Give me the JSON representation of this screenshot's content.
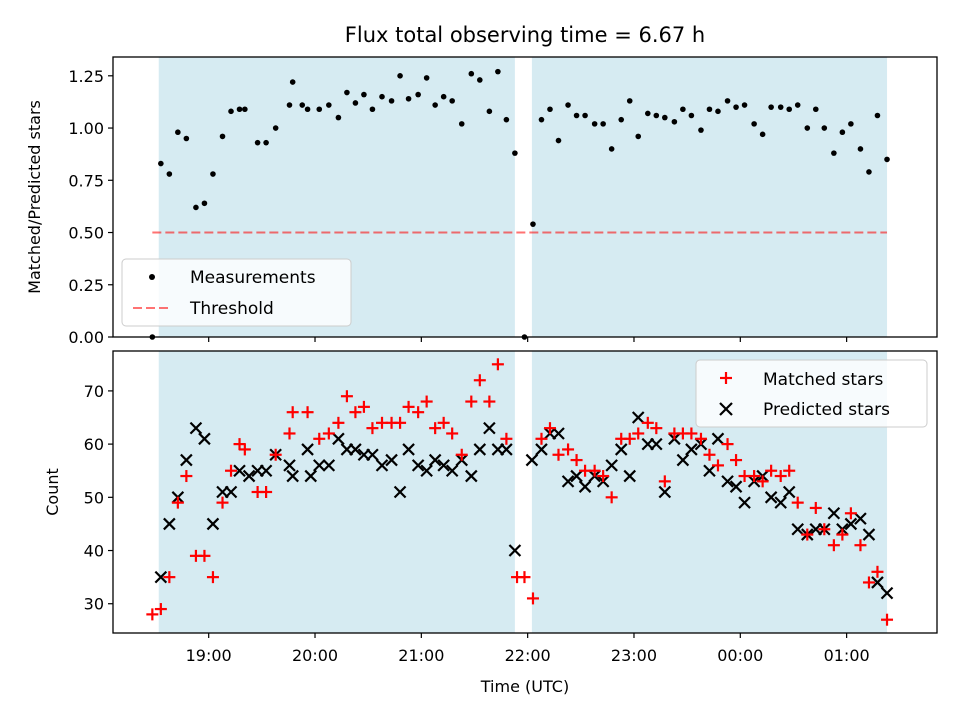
{
  "chart_data": {
    "title": "Flux total observing time = 6.67 h",
    "xlabel": "Time (UTC)",
    "x_unit": "hours since 18:00 UTC",
    "xlim": [
      18.1,
      25.85
    ],
    "x_ticks": [
      {
        "x": 19,
        "label": "19:00"
      },
      {
        "x": 20,
        "label": "20:00"
      },
      {
        "x": 21,
        "label": "21:00"
      },
      {
        "x": 22,
        "label": "22:00"
      },
      {
        "x": 23,
        "label": "23:00"
      },
      {
        "x": 24,
        "label": "00:00"
      },
      {
        "x": 25,
        "label": "01:00"
      }
    ],
    "colors": {
      "shade": "#add8e6",
      "measurement": "#000000",
      "threshold": "#ff0000",
      "matched": "#ff0000",
      "predicted": "#000000"
    },
    "shaded_spans": [
      [
        18.53,
        21.88
      ],
      [
        22.04,
        25.38
      ]
    ],
    "top": {
      "type": "scatter",
      "ylabel": "Matched/Predicted stars",
      "ylim": [
        0,
        1.34
      ],
      "y_ticks": [
        {
          "y": 0,
          "label": "0.00"
        },
        {
          "y": 0.25,
          "label": "0.25"
        },
        {
          "y": 0.5,
          "label": "0.50"
        },
        {
          "y": 0.75,
          "label": "0.75"
        },
        {
          "y": 1.0,
          "label": "1.00"
        },
        {
          "y": 1.25,
          "label": "1.25"
        }
      ],
      "threshold": {
        "y": 0.5,
        "x_range": [
          18.47,
          25.38
        ]
      },
      "legend": {
        "position": "lower-left",
        "measurements_label": "Measurements",
        "threshold_label": "Threshold"
      },
      "measurements": [
        [
          18.47,
          0.0
        ],
        [
          18.55,
          0.83
        ],
        [
          18.63,
          0.78
        ],
        [
          18.71,
          0.98
        ],
        [
          18.79,
          0.95
        ],
        [
          18.88,
          0.62
        ],
        [
          18.96,
          0.64
        ],
        [
          19.04,
          0.78
        ],
        [
          19.13,
          0.96
        ],
        [
          19.21,
          1.08
        ],
        [
          19.29,
          1.09
        ],
        [
          19.34,
          1.09
        ],
        [
          19.46,
          0.93
        ],
        [
          19.54,
          0.93
        ],
        [
          19.63,
          1.0
        ],
        [
          19.76,
          1.11
        ],
        [
          19.79,
          1.22
        ],
        [
          19.88,
          1.11
        ],
        [
          19.93,
          1.09
        ],
        [
          20.04,
          1.09
        ],
        [
          20.13,
          1.11
        ],
        [
          20.22,
          1.05
        ],
        [
          20.3,
          1.17
        ],
        [
          20.38,
          1.12
        ],
        [
          20.46,
          1.16
        ],
        [
          20.54,
          1.09
        ],
        [
          20.63,
          1.15
        ],
        [
          20.72,
          1.13
        ],
        [
          20.8,
          1.25
        ],
        [
          20.88,
          1.14
        ],
        [
          20.97,
          1.16
        ],
        [
          21.05,
          1.24
        ],
        [
          21.13,
          1.11
        ],
        [
          21.21,
          1.15
        ],
        [
          21.29,
          1.13
        ],
        [
          21.38,
          1.02
        ],
        [
          21.47,
          1.26
        ],
        [
          21.55,
          1.23
        ],
        [
          21.64,
          1.08
        ],
        [
          21.72,
          1.27
        ],
        [
          21.8,
          1.04
        ],
        [
          21.88,
          0.88
        ],
        [
          21.97,
          0.0
        ],
        [
          22.05,
          0.54
        ],
        [
          22.13,
          1.04
        ],
        [
          22.21,
          1.09
        ],
        [
          22.29,
          0.94
        ],
        [
          22.38,
          1.11
        ],
        [
          22.46,
          1.06
        ],
        [
          22.54,
          1.06
        ],
        [
          22.63,
          1.02
        ],
        [
          22.71,
          1.02
        ],
        [
          22.79,
          0.9
        ],
        [
          22.88,
          1.04
        ],
        [
          22.96,
          1.13
        ],
        [
          23.04,
          0.96
        ],
        [
          23.13,
          1.07
        ],
        [
          23.21,
          1.06
        ],
        [
          23.29,
          1.05
        ],
        [
          23.38,
          1.03
        ],
        [
          23.46,
          1.09
        ],
        [
          23.54,
          1.06
        ],
        [
          23.63,
          0.99
        ],
        [
          23.71,
          1.09
        ],
        [
          23.79,
          1.08
        ],
        [
          23.88,
          1.13
        ],
        [
          23.96,
          1.1
        ],
        [
          24.04,
          1.11
        ],
        [
          24.13,
          1.02
        ],
        [
          24.21,
          0.97
        ],
        [
          24.29,
          1.1
        ],
        [
          24.38,
          1.1
        ],
        [
          24.46,
          1.09
        ],
        [
          24.54,
          1.11
        ],
        [
          24.63,
          1.0
        ],
        [
          24.71,
          1.09
        ],
        [
          24.79,
          1.0
        ],
        [
          24.88,
          0.88
        ],
        [
          24.96,
          0.98
        ],
        [
          25.04,
          1.02
        ],
        [
          25.13,
          0.9
        ],
        [
          25.21,
          0.79
        ],
        [
          25.29,
          1.06
        ],
        [
          25.38,
          0.85
        ]
      ]
    },
    "bottom": {
      "type": "scatter",
      "ylabel": "Count",
      "ylim": [
        24.5,
        77.5
      ],
      "y_ticks": [
        {
          "y": 30,
          "label": "30"
        },
        {
          "y": 40,
          "label": "40"
        },
        {
          "y": 50,
          "label": "50"
        },
        {
          "y": 60,
          "label": "60"
        },
        {
          "y": 70,
          "label": "70"
        }
      ],
      "legend": {
        "position": "upper-right",
        "matched_label": "Matched stars",
        "predicted_label": "Predicted stars"
      },
      "matched": [
        [
          18.47,
          28
        ],
        [
          18.55,
          29
        ],
        [
          18.63,
          35
        ],
        [
          18.71,
          49
        ],
        [
          18.79,
          54
        ],
        [
          18.88,
          39
        ],
        [
          18.96,
          39
        ],
        [
          19.04,
          35
        ],
        [
          19.13,
          49
        ],
        [
          19.21,
          55
        ],
        [
          19.29,
          60
        ],
        [
          19.34,
          59
        ],
        [
          19.46,
          51
        ],
        [
          19.54,
          51
        ],
        [
          19.63,
          58
        ],
        [
          19.76,
          62
        ],
        [
          19.79,
          66
        ],
        [
          19.93,
          66
        ],
        [
          20.04,
          61
        ],
        [
          20.13,
          62
        ],
        [
          20.22,
          64
        ],
        [
          20.3,
          69
        ],
        [
          20.38,
          66
        ],
        [
          20.46,
          67
        ],
        [
          20.54,
          63
        ],
        [
          20.63,
          64
        ],
        [
          20.72,
          64
        ],
        [
          20.8,
          64
        ],
        [
          20.88,
          67
        ],
        [
          20.97,
          66
        ],
        [
          21.05,
          68
        ],
        [
          21.13,
          63
        ],
        [
          21.21,
          64
        ],
        [
          21.29,
          62
        ],
        [
          21.38,
          58
        ],
        [
          21.47,
          68
        ],
        [
          21.55,
          72
        ],
        [
          21.64,
          68
        ],
        [
          21.72,
          75
        ],
        [
          21.8,
          61
        ],
        [
          21.9,
          35
        ],
        [
          21.97,
          35
        ],
        [
          22.05,
          31
        ],
        [
          22.13,
          61
        ],
        [
          22.21,
          63
        ],
        [
          22.29,
          58
        ],
        [
          22.38,
          59
        ],
        [
          22.46,
          57
        ],
        [
          22.54,
          55
        ],
        [
          22.63,
          55
        ],
        [
          22.71,
          54
        ],
        [
          22.79,
          50
        ],
        [
          22.88,
          61
        ],
        [
          22.96,
          61
        ],
        [
          23.04,
          62
        ],
        [
          23.13,
          64
        ],
        [
          23.21,
          63
        ],
        [
          23.29,
          53
        ],
        [
          23.38,
          62
        ],
        [
          23.46,
          62
        ],
        [
          23.54,
          62
        ],
        [
          23.63,
          61
        ],
        [
          23.71,
          58
        ],
        [
          23.79,
          56
        ],
        [
          23.88,
          60
        ],
        [
          23.96,
          57
        ],
        [
          24.04,
          54
        ],
        [
          24.13,
          54
        ],
        [
          24.21,
          53
        ],
        [
          24.29,
          55
        ],
        [
          24.38,
          54
        ],
        [
          24.46,
          55
        ],
        [
          24.54,
          49
        ],
        [
          24.63,
          43
        ],
        [
          24.71,
          48
        ],
        [
          24.79,
          44
        ],
        [
          24.88,
          41
        ],
        [
          24.96,
          43
        ],
        [
          25.04,
          47
        ],
        [
          25.13,
          41
        ],
        [
          25.21,
          34
        ],
        [
          25.29,
          36
        ],
        [
          25.38,
          27
        ]
      ],
      "predicted": [
        [
          18.55,
          35
        ],
        [
          18.63,
          45
        ],
        [
          18.71,
          50
        ],
        [
          18.79,
          57
        ],
        [
          18.88,
          63
        ],
        [
          18.96,
          61
        ],
        [
          19.04,
          45
        ],
        [
          19.13,
          51
        ],
        [
          19.21,
          51
        ],
        [
          19.29,
          55
        ],
        [
          19.38,
          54
        ],
        [
          19.46,
          55
        ],
        [
          19.54,
          55
        ],
        [
          19.63,
          58
        ],
        [
          19.76,
          56
        ],
        [
          19.79,
          54
        ],
        [
          19.93,
          59
        ],
        [
          19.96,
          54
        ],
        [
          20.04,
          56
        ],
        [
          20.13,
          56
        ],
        [
          20.22,
          61
        ],
        [
          20.3,
          59
        ],
        [
          20.38,
          59
        ],
        [
          20.46,
          58
        ],
        [
          20.54,
          58
        ],
        [
          20.63,
          56
        ],
        [
          20.72,
          57
        ],
        [
          20.8,
          51
        ],
        [
          20.88,
          59
        ],
        [
          20.97,
          56
        ],
        [
          21.05,
          55
        ],
        [
          21.13,
          57
        ],
        [
          21.21,
          56
        ],
        [
          21.29,
          55
        ],
        [
          21.38,
          57
        ],
        [
          21.47,
          54
        ],
        [
          21.55,
          59
        ],
        [
          21.64,
          63
        ],
        [
          21.72,
          59
        ],
        [
          21.8,
          59
        ],
        [
          21.88,
          40
        ],
        [
          22.04,
          57
        ],
        [
          22.13,
          59
        ],
        [
          22.21,
          62
        ],
        [
          22.29,
          62
        ],
        [
          22.38,
          53
        ],
        [
          22.46,
          54
        ],
        [
          22.54,
          52
        ],
        [
          22.63,
          54
        ],
        [
          22.71,
          53
        ],
        [
          22.79,
          56
        ],
        [
          22.88,
          59
        ],
        [
          22.96,
          54
        ],
        [
          23.04,
          65
        ],
        [
          23.13,
          60
        ],
        [
          23.21,
          60
        ],
        [
          23.29,
          51
        ],
        [
          23.38,
          61
        ],
        [
          23.46,
          57
        ],
        [
          23.54,
          59
        ],
        [
          23.63,
          60
        ],
        [
          23.71,
          55
        ],
        [
          23.79,
          61
        ],
        [
          23.88,
          53
        ],
        [
          23.96,
          52
        ],
        [
          24.04,
          49
        ],
        [
          24.13,
          53
        ],
        [
          24.21,
          54
        ],
        [
          24.29,
          50
        ],
        [
          24.38,
          49
        ],
        [
          24.46,
          51
        ],
        [
          24.54,
          44
        ],
        [
          24.63,
          43
        ],
        [
          24.71,
          44
        ],
        [
          24.79,
          44
        ],
        [
          24.88,
          47
        ],
        [
          24.96,
          44
        ],
        [
          25.04,
          45
        ],
        [
          25.13,
          46
        ],
        [
          25.21,
          43
        ],
        [
          25.29,
          34
        ],
        [
          25.38,
          32
        ]
      ]
    }
  }
}
